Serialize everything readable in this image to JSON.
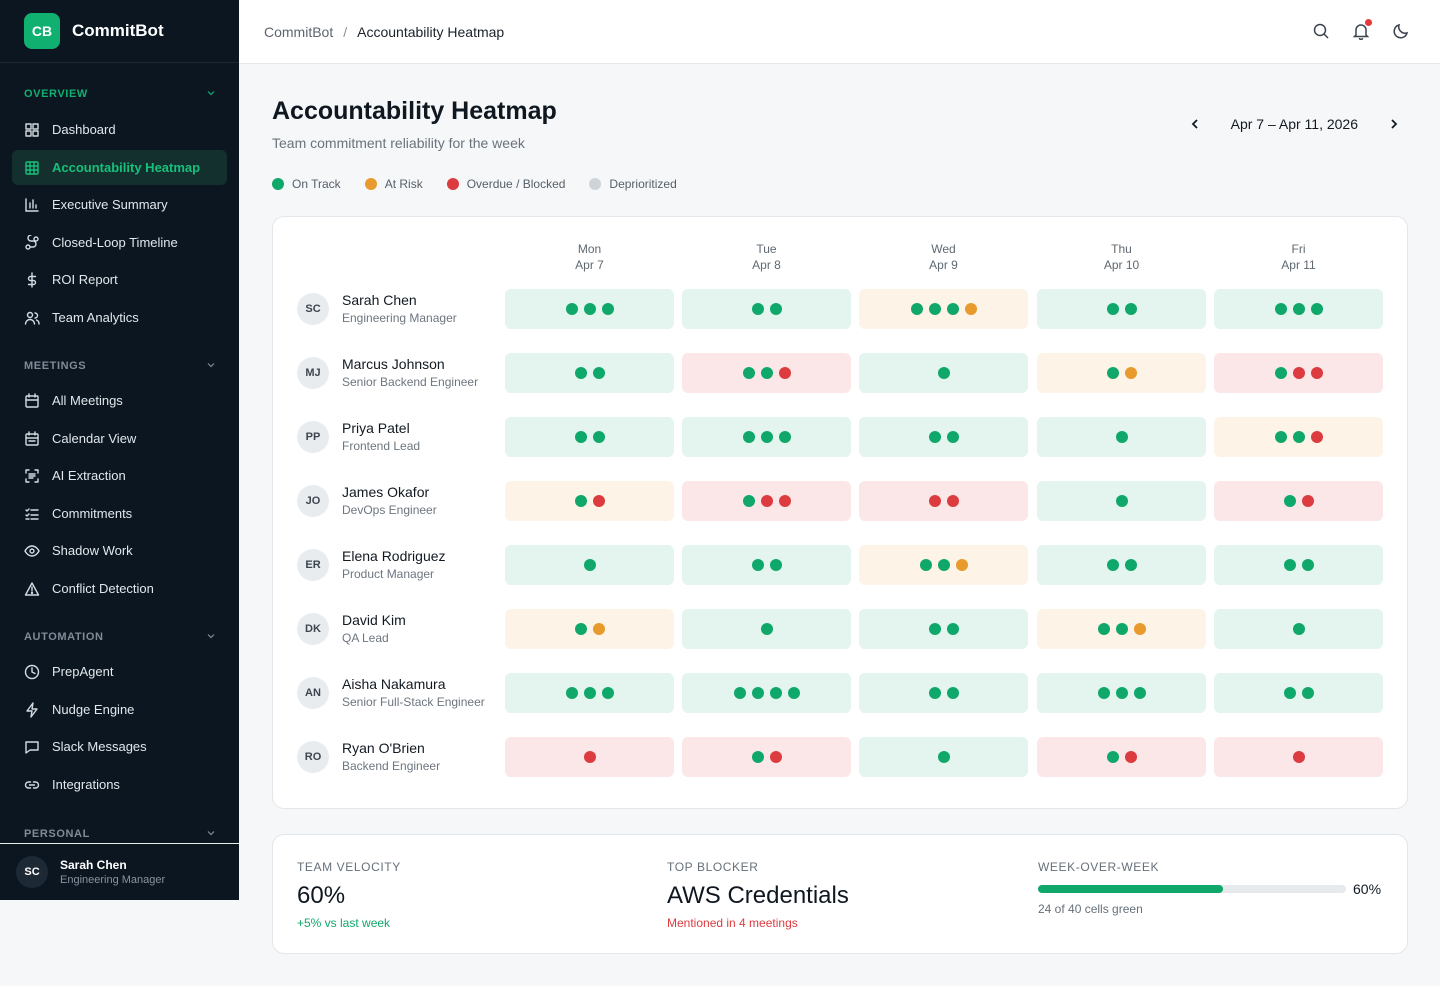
{
  "brand": {
    "logo": "CB",
    "name": "CommitBot"
  },
  "sidebar": {
    "sections": [
      {
        "title": "OVERVIEW",
        "active": true,
        "items": [
          {
            "label": "Dashboard",
            "icon": "grid-icon"
          },
          {
            "label": "Accountability Heatmap",
            "icon": "table-icon",
            "active": true
          },
          {
            "label": "Executive Summary",
            "icon": "bar-chart-icon"
          },
          {
            "label": "Closed-Loop Timeline",
            "icon": "route-icon"
          },
          {
            "label": "ROI Report",
            "icon": "dollar-icon"
          },
          {
            "label": "Team Analytics",
            "icon": "users-icon"
          }
        ]
      },
      {
        "title": "MEETINGS",
        "items": [
          {
            "label": "All Meetings",
            "icon": "calendar-icon"
          },
          {
            "label": "Calendar View",
            "icon": "calendar-grid-icon"
          },
          {
            "label": "AI Extraction",
            "icon": "scan-text-icon"
          },
          {
            "label": "Commitments",
            "icon": "checklist-icon"
          },
          {
            "label": "Shadow Work",
            "icon": "eye-icon"
          },
          {
            "label": "Conflict Detection",
            "icon": "warning-icon"
          }
        ]
      },
      {
        "title": "AUTOMATION",
        "items": [
          {
            "label": "PrepAgent",
            "icon": "clock-icon"
          },
          {
            "label": "Nudge Engine",
            "icon": "bolt-icon"
          },
          {
            "label": "Slack Messages",
            "icon": "message-icon"
          },
          {
            "label": "Integrations",
            "icon": "link-icon"
          }
        ]
      },
      {
        "title": "PERSONAL",
        "items": []
      }
    ],
    "user": {
      "initials": "SC",
      "name": "Sarah Chen",
      "role": "Engineering Manager"
    }
  },
  "header": {
    "breadcrumb_root": "CommitBot",
    "breadcrumb_sep": "/",
    "breadcrumb_current": "Accountability Heatmap",
    "icons": [
      "search-icon",
      "bell-icon",
      "moon-icon"
    ]
  },
  "page": {
    "title": "Accountability Heatmap",
    "subtitle": "Team commitment reliability for the week",
    "week_range": "Apr 7 – Apr 11, 2026"
  },
  "colors": {
    "green": "#10a86a",
    "amber": "#e89a2c",
    "red": "#dc3b3f",
    "gray": "#cfd4d9",
    "accent": "#10b070"
  },
  "legend": [
    {
      "label": "On Track",
      "status": "green"
    },
    {
      "label": "At Risk",
      "status": "amber"
    },
    {
      "label": "Overdue / Blocked",
      "status": "red"
    },
    {
      "label": "Deprioritized",
      "status": "gray"
    }
  ],
  "days": [
    {
      "day": "Mon",
      "date": "Apr 7"
    },
    {
      "day": "Tue",
      "date": "Apr 8"
    },
    {
      "day": "Wed",
      "date": "Apr 9"
    },
    {
      "day": "Thu",
      "date": "Apr 10"
    },
    {
      "day": "Fri",
      "date": "Apr 11"
    }
  ],
  "people": [
    {
      "initials": "SC",
      "name": "Sarah Chen",
      "role": "Engineering Manager",
      "cells": [
        {
          "bg": "green",
          "dots": [
            "green",
            "green",
            "green"
          ]
        },
        {
          "bg": "green",
          "dots": [
            "green",
            "green"
          ]
        },
        {
          "bg": "amber",
          "dots": [
            "green",
            "green",
            "green",
            "amber"
          ]
        },
        {
          "bg": "green",
          "dots": [
            "green",
            "green"
          ]
        },
        {
          "bg": "green",
          "dots": [
            "green",
            "green",
            "green"
          ]
        }
      ]
    },
    {
      "initials": "MJ",
      "name": "Marcus Johnson",
      "role": "Senior Backend Engineer",
      "cells": [
        {
          "bg": "green",
          "dots": [
            "green",
            "green"
          ]
        },
        {
          "bg": "red",
          "dots": [
            "green",
            "green",
            "red"
          ]
        },
        {
          "bg": "green",
          "dots": [
            "green"
          ]
        },
        {
          "bg": "amber",
          "dots": [
            "green",
            "amber"
          ]
        },
        {
          "bg": "red",
          "dots": [
            "green",
            "red",
            "red"
          ]
        }
      ]
    },
    {
      "initials": "PP",
      "name": "Priya Patel",
      "role": "Frontend Lead",
      "cells": [
        {
          "bg": "green",
          "dots": [
            "green",
            "green"
          ]
        },
        {
          "bg": "green",
          "dots": [
            "green",
            "green",
            "green"
          ]
        },
        {
          "bg": "green",
          "dots": [
            "green",
            "green"
          ]
        },
        {
          "bg": "green",
          "dots": [
            "green"
          ]
        },
        {
          "bg": "amber",
          "dots": [
            "green",
            "green",
            "red"
          ]
        }
      ]
    },
    {
      "initials": "JO",
      "name": "James Okafor",
      "role": "DevOps Engineer",
      "cells": [
        {
          "bg": "amber",
          "dots": [
            "green",
            "red"
          ]
        },
        {
          "bg": "red",
          "dots": [
            "green",
            "red",
            "red"
          ]
        },
        {
          "bg": "red",
          "dots": [
            "red",
            "red"
          ]
        },
        {
          "bg": "green",
          "dots": [
            "green"
          ]
        },
        {
          "bg": "red",
          "dots": [
            "green",
            "red"
          ]
        }
      ]
    },
    {
      "initials": "ER",
      "name": "Elena Rodriguez",
      "role": "Product Manager",
      "cells": [
        {
          "bg": "green",
          "dots": [
            "green"
          ]
        },
        {
          "bg": "green",
          "dots": [
            "green",
            "green"
          ]
        },
        {
          "bg": "amber",
          "dots": [
            "green",
            "green",
            "amber"
          ]
        },
        {
          "bg": "green",
          "dots": [
            "green",
            "green"
          ]
        },
        {
          "bg": "green",
          "dots": [
            "green",
            "green"
          ]
        }
      ]
    },
    {
      "initials": "DK",
      "name": "David Kim",
      "role": "QA Lead",
      "cells": [
        {
          "bg": "amber",
          "dots": [
            "green",
            "amber"
          ]
        },
        {
          "bg": "green",
          "dots": [
            "green"
          ]
        },
        {
          "bg": "green",
          "dots": [
            "green",
            "green"
          ]
        },
        {
          "bg": "amber",
          "dots": [
            "green",
            "green",
            "amber"
          ]
        },
        {
          "bg": "green",
          "dots": [
            "green"
          ]
        }
      ]
    },
    {
      "initials": "AN",
      "name": "Aisha Nakamura",
      "role": "Senior Full-Stack Engineer",
      "cells": [
        {
          "bg": "green",
          "dots": [
            "green",
            "green",
            "green"
          ]
        },
        {
          "bg": "green",
          "dots": [
            "green",
            "green",
            "green",
            "green"
          ]
        },
        {
          "bg": "green",
          "dots": [
            "green",
            "green"
          ]
        },
        {
          "bg": "green",
          "dots": [
            "green",
            "green",
            "green"
          ]
        },
        {
          "bg": "green",
          "dots": [
            "green",
            "green"
          ]
        }
      ]
    },
    {
      "initials": "RO",
      "name": "Ryan O'Brien",
      "role": "Backend Engineer",
      "cells": [
        {
          "bg": "red",
          "dots": [
            "red"
          ]
        },
        {
          "bg": "red",
          "dots": [
            "green",
            "red"
          ]
        },
        {
          "bg": "green",
          "dots": [
            "green"
          ]
        },
        {
          "bg": "red",
          "dots": [
            "green",
            "red"
          ]
        },
        {
          "bg": "red",
          "dots": [
            "red"
          ]
        }
      ]
    }
  ],
  "stats": {
    "velocity": {
      "label": "TEAM VELOCITY",
      "value": "60%",
      "note": "+5% vs last week"
    },
    "blocker": {
      "label": "TOP BLOCKER",
      "value": "AWS Credentials",
      "note": "Mentioned in 4 meetings"
    },
    "wow": {
      "label": "WEEK-OVER-WEEK",
      "percent_text": "60%",
      "fraction": 0.6,
      "note": "24 of 40 cells green"
    }
  }
}
